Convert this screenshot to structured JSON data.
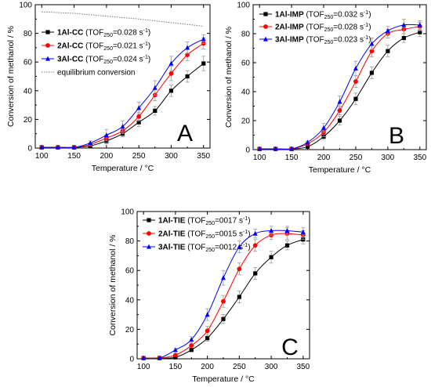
{
  "chart_data": [
    {
      "type": "line",
      "panel_label": "A",
      "xlabel": "Temperature / °C",
      "ylabel": "Conversion of methanol / %",
      "xlim": [
        90,
        360
      ],
      "ylim": [
        0,
        100
      ],
      "xticks": [
        100,
        150,
        200,
        250,
        300,
        350
      ],
      "yticks": [
        0,
        20,
        40,
        60,
        80,
        100
      ],
      "legend_position": "top-left",
      "x": [
        100,
        125,
        150,
        175,
        200,
        225,
        250,
        275,
        300,
        325,
        350
      ],
      "series": [
        {
          "name": "1Al-CC",
          "tof_label": " (TOF",
          "tof_sub": "250",
          "tof_value": "=0.028 s",
          "tof_sup": "-1",
          "tof_end": ")",
          "color": "#000000",
          "marker": "square",
          "values": [
            0.5,
            0.5,
            0.5,
            1.5,
            5,
            10,
            18,
            26,
            40,
            50,
            59
          ],
          "errors": [
            0.5,
            0.5,
            0.5,
            1,
            2,
            2,
            3,
            3,
            4,
            4,
            5
          ]
        },
        {
          "name": "2Al-CC",
          "tof_label": " (TOF",
          "tof_sub": "250",
          "tof_value": "=0.021 s",
          "tof_sup": "-1",
          "tof_end": ")",
          "color": "#ff0000",
          "marker": "circle",
          "values": [
            0.5,
            0.5,
            0.5,
            2.5,
            7,
            12,
            22,
            37,
            52,
            65,
            73
          ],
          "errors": [
            0.5,
            0.5,
            0.5,
            1,
            2,
            2,
            3,
            4,
            5,
            4,
            4
          ]
        },
        {
          "name": "3Al-CC",
          "tof_label": " (TOF",
          "tof_sub": "250",
          "tof_value": "=0.024 s",
          "tof_sup": "-1",
          "tof_end": ")",
          "color": "#0000ff",
          "marker": "triangle",
          "values": [
            0.5,
            0.5,
            0.5,
            3.5,
            9,
            15,
            28,
            42,
            59,
            70,
            76
          ],
          "errors": [
            0.5,
            0.5,
            0.5,
            1.5,
            4,
            4,
            4,
            5,
            5,
            4,
            3
          ]
        }
      ],
      "reference_line": {
        "name": "equilibrium conversion",
        "style": "dotted",
        "color": "#777777",
        "x": [
          100,
          150,
          200,
          250,
          300,
          350
        ],
        "values": [
          95,
          94,
          92,
          90,
          87.5,
          85
        ]
      }
    },
    {
      "type": "line",
      "panel_label": "B",
      "xlabel": "Temperature / °C",
      "ylabel": "Conversion of methanol / %",
      "xlim": [
        90,
        360
      ],
      "ylim": [
        0,
        100
      ],
      "xticks": [
        100,
        150,
        200,
        250,
        300,
        350
      ],
      "yticks": [
        0,
        20,
        40,
        60,
        80,
        100
      ],
      "legend_position": "top-left",
      "x": [
        100,
        125,
        150,
        175,
        200,
        225,
        250,
        275,
        300,
        325,
        350
      ],
      "series": [
        {
          "name": "1Al-IMP",
          "tof_label": " (TOF",
          "tof_sub": "250",
          "tof_value": "=0.032 s",
          "tof_sup": "-1",
          "tof_end": ")",
          "color": "#000000",
          "marker": "square",
          "values": [
            0.5,
            0.5,
            0.5,
            2,
            9,
            20,
            35,
            53,
            68,
            77,
            81
          ],
          "errors": [
            0.5,
            0.5,
            0.5,
            1,
            2,
            3,
            4,
            4,
            4,
            3,
            3
          ]
        },
        {
          "name": "2Al-IMP",
          "tof_label": " (TOF",
          "tof_sub": "250",
          "tof_value": "=0.028 s",
          "tof_sup": "-1",
          "tof_end": ")",
          "color": "#ff0000",
          "marker": "circle",
          "values": [
            0.5,
            0.5,
            0.5,
            4,
            12,
            27,
            47,
            68,
            80,
            83,
            85
          ],
          "errors": [
            0.5,
            0.5,
            0.5,
            1,
            3,
            3,
            4,
            4,
            3,
            3,
            3
          ]
        },
        {
          "name": "3Al-IMP",
          "tof_label": " (TOF",
          "tof_sub": "250",
          "tof_value": "=0.023 s",
          "tof_sup": "-1",
          "tof_end": ")",
          "color": "#0000ff",
          "marker": "triangle",
          "values": [
            0.5,
            0.5,
            0.5,
            5,
            15,
            33,
            56,
            73,
            82,
            86,
            86
          ],
          "errors": [
            0.5,
            0.5,
            0.5,
            1,
            3,
            4,
            5,
            4,
            3,
            4,
            3
          ]
        }
      ]
    },
    {
      "type": "line",
      "panel_label": "C",
      "xlabel": "Temperature / °C",
      "ylabel": "Conversion of methanol / %",
      "xlim": [
        90,
        360
      ],
      "ylim": [
        0,
        100
      ],
      "xticks": [
        100,
        150,
        200,
        250,
        300,
        350
      ],
      "yticks": [
        0,
        20,
        40,
        60,
        80,
        100
      ],
      "legend_position": "top-left",
      "x": [
        100,
        125,
        150,
        175,
        200,
        225,
        250,
        275,
        300,
        325,
        350
      ],
      "series": [
        {
          "name": "1Al-TIE",
          "tof_label": " (TOF",
          "tof_sub": "250",
          "tof_value": "=0017 s",
          "tof_sup": "-1",
          "tof_end": ")",
          "color": "#000000",
          "marker": "square",
          "values": [
            0.5,
            0.5,
            1,
            6,
            14,
            27,
            42,
            58,
            69,
            77,
            81
          ],
          "errors": [
            0.5,
            0.5,
            0.5,
            1,
            2,
            3,
            4,
            4,
            4,
            3,
            3
          ]
        },
        {
          "name": "2Al-TIE",
          "tof_label": " (TOF",
          "tof_sub": "250",
          "tof_value": "=0015 s",
          "tof_sup": "-1",
          "tof_end": ")",
          "color": "#ff0000",
          "marker": "circle",
          "values": [
            0.5,
            0.5,
            2.5,
            9,
            19,
            39,
            61,
            77,
            84,
            85,
            84
          ],
          "errors": [
            0.5,
            0.5,
            0.5,
            1,
            3,
            4,
            4,
            4,
            3,
            4,
            3
          ]
        },
        {
          "name": "3Al-TIE",
          "tof_label": " (TOF",
          "tof_sub": "250",
          "tof_value": "=0012 s",
          "tof_sup": "-1",
          "tof_end": ")",
          "color": "#0000ff",
          "marker": "triangle",
          "values": [
            0.5,
            0.5,
            6,
            13,
            30,
            55,
            76,
            85,
            87,
            87,
            86
          ],
          "errors": [
            0.5,
            0.5,
            1,
            2,
            4,
            5,
            4,
            3,
            3,
            3,
            3
          ]
        }
      ]
    }
  ]
}
